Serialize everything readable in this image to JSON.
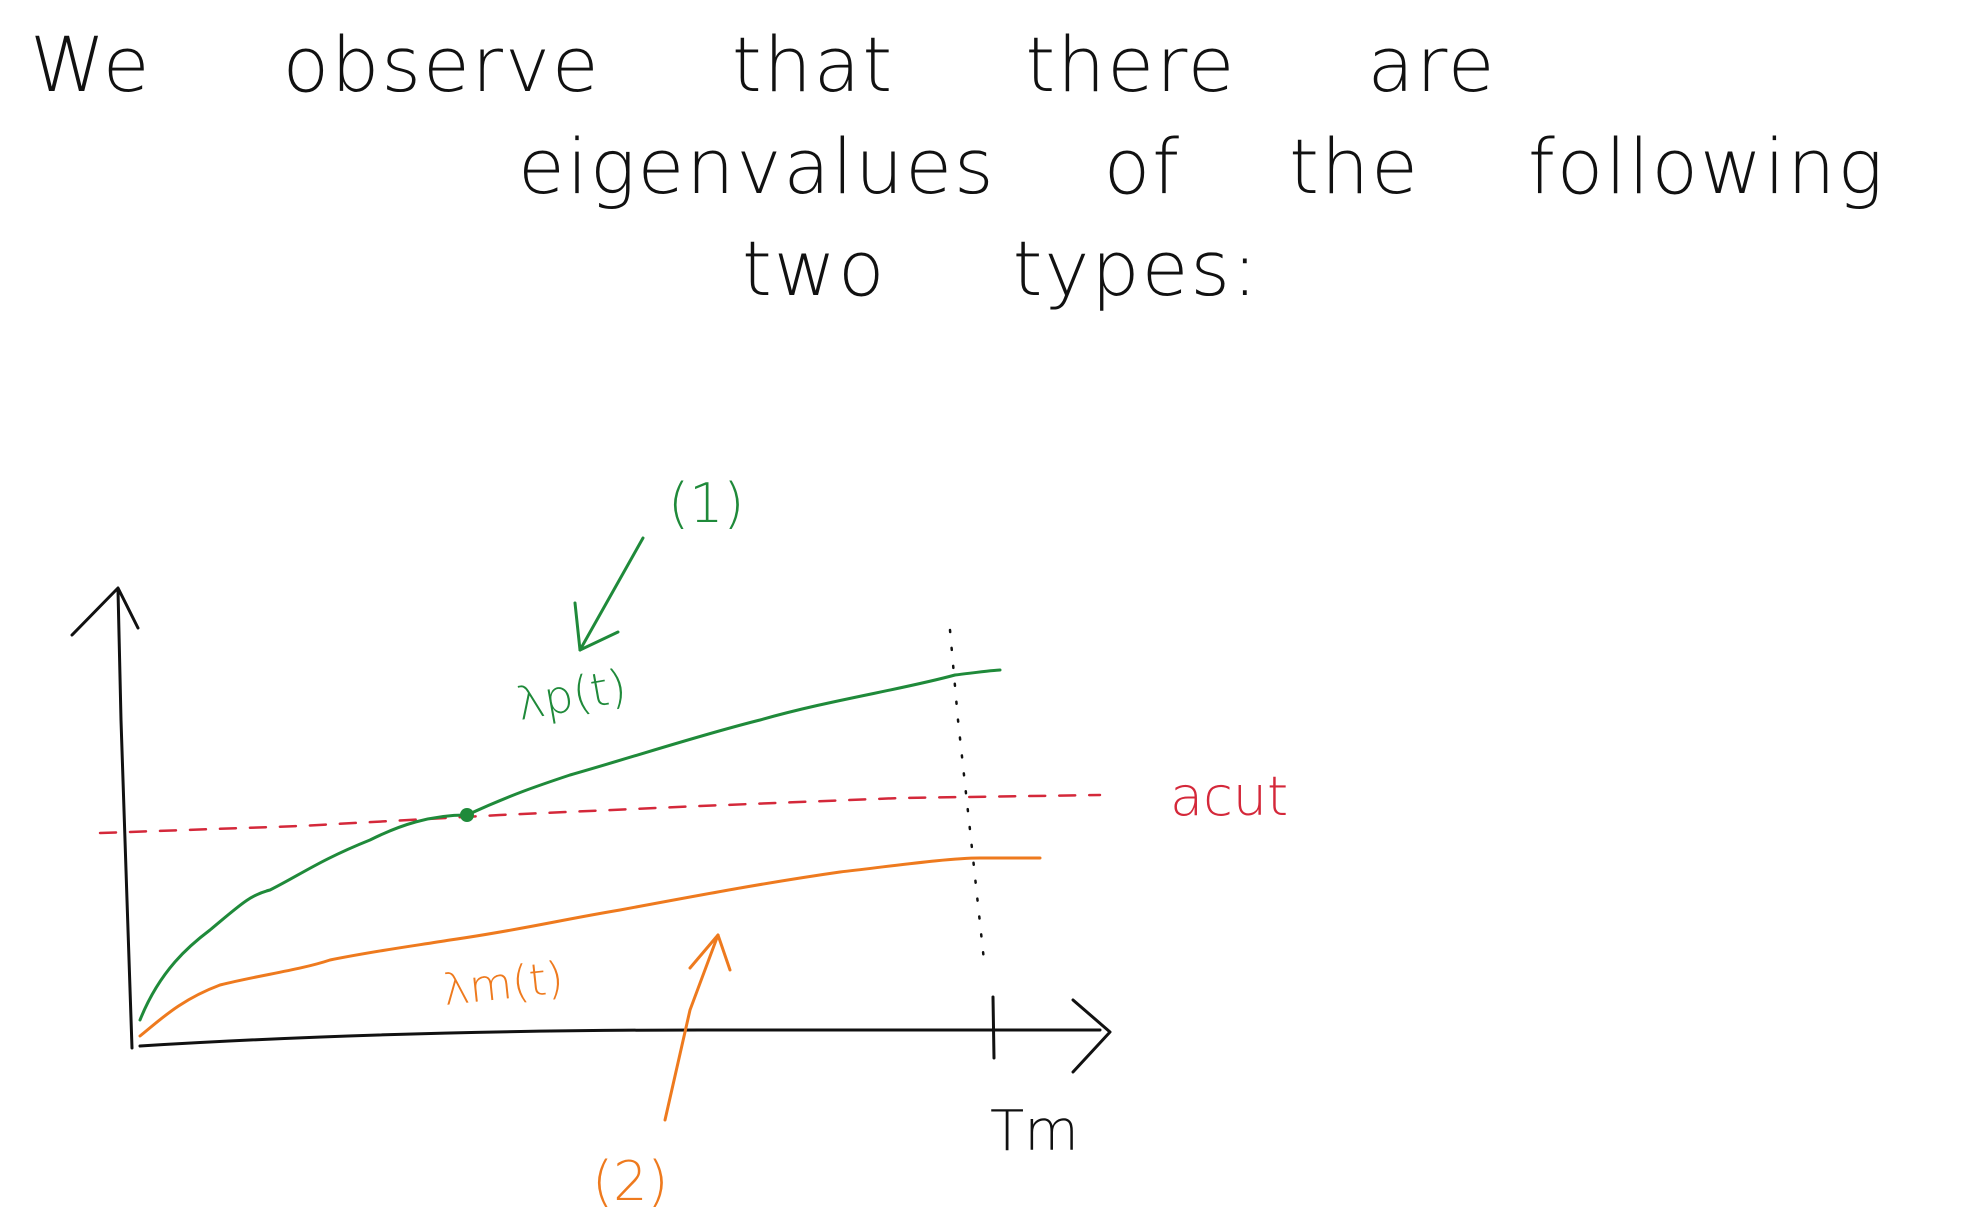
{
  "note": {
    "line1": "We observe that there are",
    "line2": "eigenvalues of the following",
    "line3": "two types:"
  },
  "diagram": {
    "labels": {
      "curve_p": "λp(t)",
      "curve_m": "λm(t)",
      "threshold": "acut",
      "time_end": "Tm",
      "type1": "(1)",
      "type2": "(2)"
    },
    "colors": {
      "ink": "#111111",
      "green": "#1f8a3a",
      "orange": "#ee7a1e",
      "red": "#d4283a"
    }
  }
}
